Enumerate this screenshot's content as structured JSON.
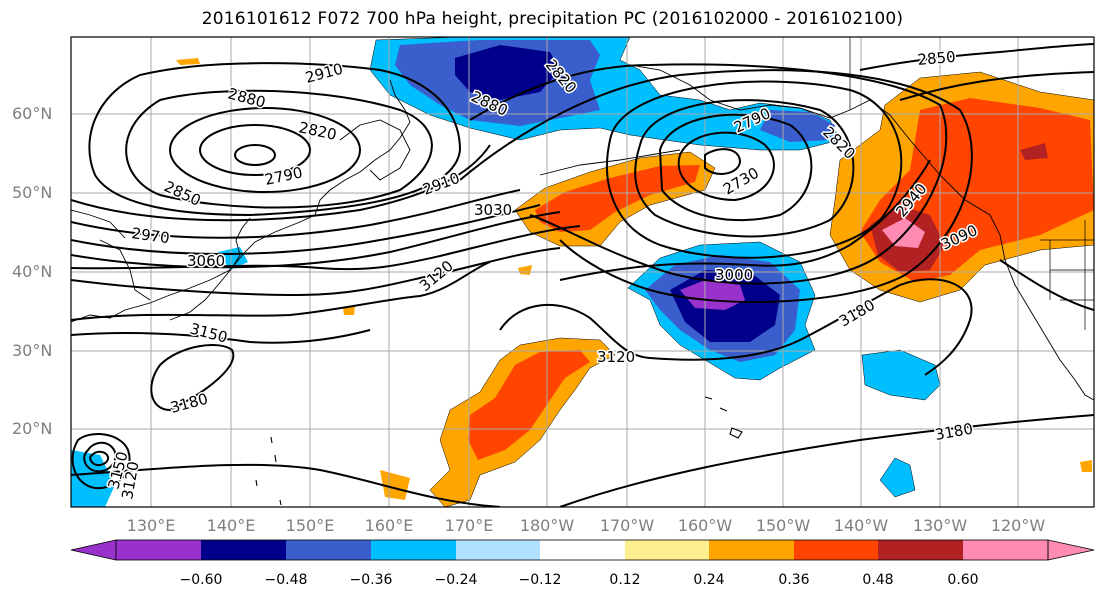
{
  "title": "2016101612 F072 700 hPa height, precipitation PC (2016102000 - 2016102100)",
  "map": {
    "lat_labels": [
      "60°N",
      "50°N",
      "40°N",
      "30°N",
      "20°N"
    ],
    "lon_labels": [
      "130°E",
      "140°E",
      "150°E",
      "160°E",
      "170°E",
      "180°W",
      "170°W",
      "160°W",
      "150°W",
      "140°W",
      "130°W",
      "120°W"
    ],
    "contour_labels": [
      "2910",
      "2880",
      "2820",
      "2790",
      "2850",
      "2970",
      "3060",
      "3150",
      "3180",
      "3120",
      "2910",
      "3030",
      "3120",
      "2880",
      "2820",
      "2790",
      "2730",
      "3000",
      "3180",
      "2820",
      "2850",
      "2940",
      "3090",
      "3180",
      "3150",
      "3120",
      "3150",
      "3180"
    ],
    "colors": {
      "neg_060": "#9932cc",
      "neg_048": "#00008b",
      "neg_036": "#3a5fcd",
      "neg_024": "#00bfff",
      "neg_012": "#b0e2ff",
      "neutral": "#ffffff",
      "pos_012": "#fff08f",
      "pos_024": "#ffa500",
      "pos_036": "#ff4500",
      "pos_048": "#b22222",
      "pos_060": "#ff8ab4"
    }
  },
  "colorbar": {
    "tick_labels": [
      "−0.60",
      "−0.48",
      "−0.36",
      "−0.24",
      "−0.12",
      "0.12",
      "0.24",
      "0.36",
      "0.48",
      "0.60"
    ],
    "colors": [
      "#9932cc",
      "#00008b",
      "#3a5fcd",
      "#00bfff",
      "#b0e2ff",
      "#ffffff",
      "#fff08f",
      "#ffa500",
      "#ff4500",
      "#b22222",
      "#ff8ab4"
    ]
  }
}
